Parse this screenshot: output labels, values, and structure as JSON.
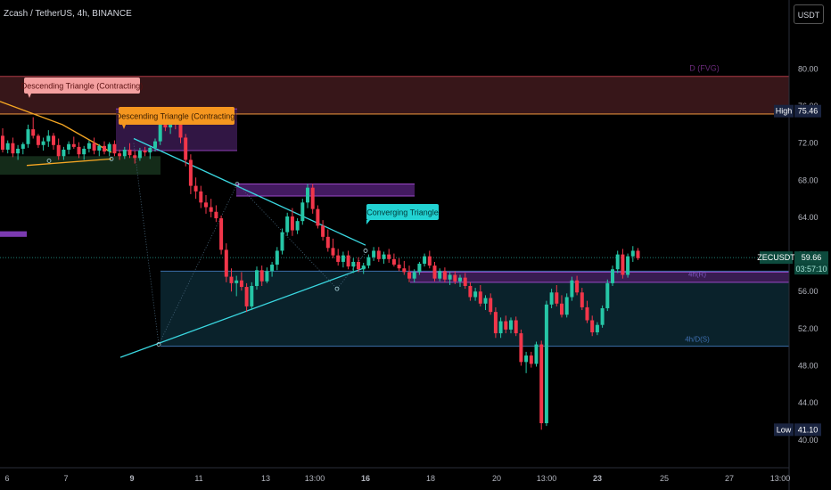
{
  "header": {
    "title": "Zcash / TetherUS, 4h, BINANCE",
    "currency": "USDT"
  },
  "colors": {
    "background": "#000000",
    "up": "#26c6a6",
    "down": "#f2364a",
    "axis_text": "#b2b5be",
    "triangle_converging": "#3ad7e0",
    "triangle_descending": "#f5a623"
  },
  "chart_data": {
    "type": "candlestick",
    "ylim": [
      37,
      86
    ],
    "y_ticks": [
      "80.00",
      "76.00",
      "72.00",
      "68.00",
      "64.00",
      "60.00",
      "56.00",
      "52.00",
      "48.00",
      "44.00",
      "40.00"
    ],
    "y_tick_values": [
      80,
      76,
      72,
      68,
      64,
      60,
      56,
      52,
      48,
      44,
      40
    ],
    "x_ticks": [
      "6",
      "7",
      "9",
      "11",
      "13",
      "13:00",
      "16",
      "18",
      "20",
      "13:00",
      "23",
      "25",
      "27",
      "13:00"
    ],
    "x_tick_bold": [
      false,
      false,
      true,
      false,
      false,
      false,
      true,
      false,
      false,
      false,
      true,
      false,
      false,
      false
    ],
    "high": {
      "label": "High",
      "value": "75.46"
    },
    "low": {
      "label": "Low",
      "value": "41.10"
    },
    "current": {
      "label": "ZECUSDT",
      "price": "59.66",
      "countdown": "03:57:10"
    },
    "annotations": [
      {
        "text": "Descending Triangle (Contracting)",
        "style": "pink"
      },
      {
        "text": "Descending Triangle (Contracting)",
        "style": "orange"
      },
      {
        "text": "Converging Triangle",
        "style": "cyan"
      }
    ],
    "zone_labels": [
      "D (FVG)",
      "4h(R)",
      "4h/D(S)"
    ],
    "candles": [
      [
        72.8,
        73.6,
        71.0,
        71.3
      ],
      [
        71.3,
        72.3,
        70.9,
        72.0
      ],
      [
        72.0,
        72.6,
        70.5,
        70.9
      ],
      [
        70.9,
        71.8,
        70.2,
        71.4
      ],
      [
        71.4,
        72.1,
        70.8,
        71.9
      ],
      [
        71.9,
        74.0,
        71.5,
        73.5
      ],
      [
        73.5,
        74.8,
        72.5,
        72.8
      ],
      [
        72.8,
        73.0,
        71.5,
        71.8
      ],
      [
        71.8,
        72.6,
        71.2,
        72.2
      ],
      [
        72.2,
        73.4,
        71.6,
        72.8
      ],
      [
        72.8,
        73.1,
        71.3,
        71.8
      ],
      [
        71.8,
        72.5,
        70.2,
        70.6
      ],
      [
        70.6,
        71.6,
        70.2,
        71.3
      ],
      [
        71.3,
        72.2,
        70.8,
        71.9
      ],
      [
        71.9,
        72.7,
        71.4,
        71.6
      ],
      [
        71.6,
        72.1,
        70.4,
        70.8
      ],
      [
        70.8,
        71.7,
        70.2,
        71.4
      ],
      [
        71.4,
        72.3,
        71.0,
        72.0
      ],
      [
        72.0,
        72.6,
        70.8,
        71.2
      ],
      [
        71.2,
        71.9,
        70.6,
        71.7
      ],
      [
        71.7,
        72.2,
        70.8,
        71.1
      ],
      [
        71.1,
        72.1,
        70.6,
        71.9
      ],
      [
        71.9,
        72.3,
        70.6,
        70.9
      ],
      [
        70.9,
        71.3,
        70.2,
        70.6
      ],
      [
        70.6,
        71.6,
        70.3,
        71.3
      ],
      [
        71.3,
        72.0,
        70.4,
        70.7
      ],
      [
        70.7,
        71.2,
        69.8,
        70.4
      ],
      [
        70.4,
        71.5,
        70.1,
        71.2
      ],
      [
        71.2,
        71.6,
        70.6,
        71.0
      ],
      [
        71.0,
        71.7,
        70.3,
        71.5
      ],
      [
        71.5,
        72.5,
        71.1,
        72.2
      ],
      [
        72.2,
        74.8,
        71.8,
        74.4
      ],
      [
        74.4,
        75.3,
        73.3,
        73.7
      ],
      [
        73.7,
        74.6,
        73.0,
        74.2
      ],
      [
        74.2,
        75.4,
        73.5,
        74.0
      ],
      [
        74.0,
        74.4,
        72.0,
        72.6
      ],
      [
        72.6,
        73.0,
        69.5,
        70.2
      ],
      [
        70.2,
        70.8,
        66.5,
        67.4
      ],
      [
        67.4,
        68.3,
        66.0,
        66.8
      ],
      [
        66.8,
        67.4,
        65.0,
        65.6
      ],
      [
        65.6,
        66.4,
        64.4,
        65.1
      ],
      [
        65.1,
        66.0,
        64.0,
        64.6
      ],
      [
        64.6,
        65.3,
        63.5,
        63.9
      ],
      [
        63.9,
        64.2,
        60.0,
        60.5
      ],
      [
        60.5,
        61.2,
        57.0,
        57.6
      ],
      [
        57.6,
        58.5,
        56.0,
        56.9
      ],
      [
        56.9,
        57.7,
        55.5,
        57.2
      ],
      [
        57.2,
        58.1,
        56.1,
        56.5
      ],
      [
        56.5,
        56.9,
        53.8,
        54.4
      ],
      [
        54.4,
        57.0,
        54.0,
        56.6
      ],
      [
        56.6,
        58.7,
        56.2,
        58.3
      ],
      [
        58.3,
        58.8,
        56.6,
        57.1
      ],
      [
        57.1,
        58.6,
        56.9,
        58.2
      ],
      [
        58.2,
        59.2,
        57.6,
        58.9
      ],
      [
        58.9,
        60.8,
        58.3,
        60.4
      ],
      [
        60.4,
        62.8,
        60.0,
        62.4
      ],
      [
        62.4,
        64.5,
        62.0,
        64.1
      ],
      [
        64.1,
        65.0,
        62.0,
        62.6
      ],
      [
        62.6,
        63.9,
        62.2,
        63.6
      ],
      [
        63.6,
        66.0,
        63.2,
        65.6
      ],
      [
        65.6,
        67.6,
        65.0,
        67.2
      ],
      [
        67.2,
        67.6,
        64.4,
        64.9
      ],
      [
        64.9,
        65.3,
        62.8,
        63.1
      ],
      [
        63.1,
        63.7,
        61.5,
        61.9
      ],
      [
        61.9,
        62.7,
        60.3,
        60.7
      ],
      [
        60.7,
        61.7,
        59.6,
        59.9
      ],
      [
        59.9,
        60.6,
        58.8,
        59.2
      ],
      [
        59.2,
        60.3,
        58.6,
        59.9
      ],
      [
        59.9,
        60.4,
        58.4,
        58.7
      ],
      [
        58.7,
        59.6,
        58.0,
        59.2
      ],
      [
        59.2,
        59.7,
        58.1,
        58.4
      ],
      [
        58.4,
        59.1,
        57.9,
        58.8
      ],
      [
        58.8,
        60.0,
        58.5,
        59.7
      ],
      [
        59.7,
        60.8,
        59.3,
        60.4
      ],
      [
        60.4,
        60.8,
        59.2,
        59.5
      ],
      [
        59.5,
        60.3,
        59.0,
        60.0
      ],
      [
        60.0,
        60.6,
        59.1,
        59.5
      ],
      [
        59.5,
        60.1,
        58.7,
        58.9
      ],
      [
        58.9,
        59.6,
        58.2,
        58.5
      ],
      [
        58.5,
        59.3,
        57.8,
        58.1
      ],
      [
        58.1,
        58.8,
        57.0,
        57.4
      ],
      [
        57.4,
        58.4,
        57.0,
        58.1
      ],
      [
        58.1,
        59.2,
        57.8,
        59.0
      ],
      [
        59.0,
        60.1,
        58.7,
        59.8
      ],
      [
        59.8,
        60.4,
        58.5,
        58.8
      ],
      [
        58.8,
        59.2,
        57.1,
        57.4
      ],
      [
        57.4,
        58.5,
        57.1,
        58.2
      ],
      [
        58.2,
        58.6,
        57.0,
        57.3
      ],
      [
        57.3,
        58.1,
        56.7,
        57.8
      ],
      [
        57.8,
        58.2,
        56.8,
        57.1
      ],
      [
        57.1,
        57.8,
        56.5,
        57.5
      ],
      [
        57.5,
        58.0,
        56.3,
        56.6
      ],
      [
        56.6,
        57.0,
        55.0,
        55.4
      ],
      [
        55.4,
        56.4,
        55.0,
        56.0
      ],
      [
        56.0,
        56.7,
        54.4,
        54.7
      ],
      [
        54.7,
        55.6,
        54.0,
        55.3
      ],
      [
        55.3,
        55.8,
        53.5,
        53.8
      ],
      [
        53.8,
        54.3,
        51.0,
        51.5
      ],
      [
        51.5,
        53.2,
        51.0,
        52.8
      ],
      [
        52.8,
        53.4,
        51.5,
        51.9
      ],
      [
        51.9,
        53.2,
        51.5,
        52.9
      ],
      [
        52.9,
        53.3,
        51.2,
        51.5
      ],
      [
        51.5,
        51.9,
        48.0,
        48.4
      ],
      [
        48.4,
        49.5,
        47.2,
        49.1
      ],
      [
        49.1,
        49.5,
        47.8,
        48.2
      ],
      [
        48.2,
        50.6,
        47.9,
        50.3
      ],
      [
        50.3,
        50.7,
        41.1,
        41.8
      ],
      [
        41.8,
        55.0,
        41.5,
        54.6
      ],
      [
        54.6,
        56.3,
        54.2,
        55.9
      ],
      [
        55.9,
        56.7,
        54.4,
        54.7
      ],
      [
        54.7,
        55.6,
        53.2,
        53.5
      ],
      [
        53.5,
        55.8,
        53.2,
        55.4
      ],
      [
        55.4,
        57.6,
        55.0,
        57.2
      ],
      [
        57.2,
        57.7,
        55.6,
        55.9
      ],
      [
        55.9,
        56.4,
        54.0,
        54.3
      ],
      [
        54.3,
        55.0,
        52.6,
        52.9
      ],
      [
        52.9,
        53.4,
        51.2,
        51.6
      ],
      [
        51.6,
        52.7,
        51.3,
        52.4
      ],
      [
        52.4,
        54.5,
        52.1,
        54.2
      ],
      [
        54.2,
        57.3,
        53.9,
        56.9
      ],
      [
        56.9,
        58.8,
        56.6,
        58.4
      ],
      [
        58.4,
        60.4,
        58.0,
        60.0
      ],
      [
        60.0,
        60.6,
        57.4,
        57.8
      ],
      [
        57.8,
        60.1,
        57.5,
        59.8
      ],
      [
        59.8,
        60.9,
        59.2,
        60.4
      ],
      [
        60.4,
        60.7,
        59.4,
        59.6
      ]
    ]
  }
}
